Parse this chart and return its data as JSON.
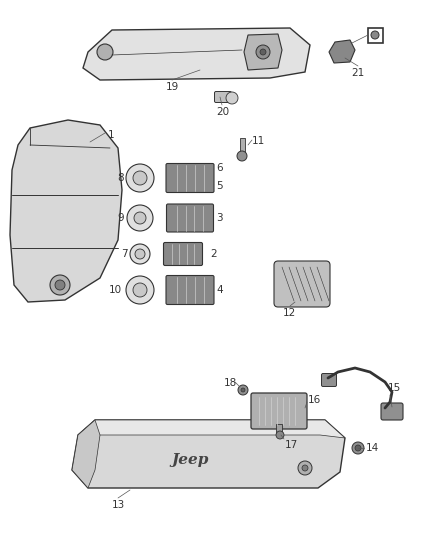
{
  "bg_color": "#ffffff",
  "fig_width": 4.38,
  "fig_height": 5.33,
  "dpi": 100,
  "lc": "#555555",
  "lc_dark": "#333333",
  "fc_light": "#e8e8e8",
  "fc_mid": "#cccccc",
  "fc_dark": "#999999",
  "lbl": "#333333",
  "lw_main": 1.0,
  "lw_thin": 0.6,
  "fs": 7.5
}
